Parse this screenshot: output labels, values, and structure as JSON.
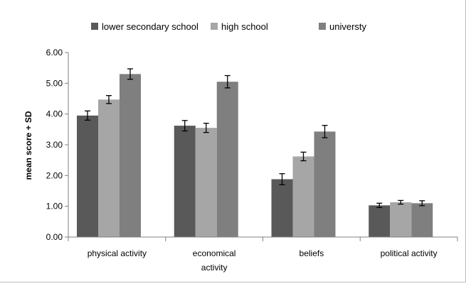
{
  "chart_data": {
    "type": "bar",
    "categories": [
      "physical activity",
      "economical activity",
      "beliefs",
      "political activity"
    ],
    "category_label_lines": [
      [
        "physical activity"
      ],
      [
        "economical",
        "activity"
      ],
      [
        "beliefs"
      ],
      [
        "political activity"
      ]
    ],
    "series": [
      {
        "name": "lower secondary school",
        "color": "#595959",
        "values": [
          3.95,
          3.62,
          1.88,
          1.03
        ],
        "error": [
          0.15,
          0.17,
          0.18,
          0.07
        ]
      },
      {
        "name": "high school",
        "color": "#a6a6a6",
        "values": [
          4.47,
          3.55,
          2.62,
          1.13
        ],
        "error": [
          0.13,
          0.15,
          0.14,
          0.06
        ]
      },
      {
        "name": "universty",
        "color": "#7f7f7f",
        "values": [
          5.3,
          5.05,
          3.43,
          1.1
        ],
        "error": [
          0.17,
          0.2,
          0.2,
          0.08
        ]
      }
    ],
    "title": "",
    "xlabel": "",
    "ylabel": "mean score + SD",
    "ylim": [
      0,
      6
    ],
    "yticks": [
      "0.00",
      "1.00",
      "2.00",
      "3.00",
      "4.00",
      "5.00",
      "6.00"
    ],
    "grid": false,
    "legend_position": "top"
  }
}
